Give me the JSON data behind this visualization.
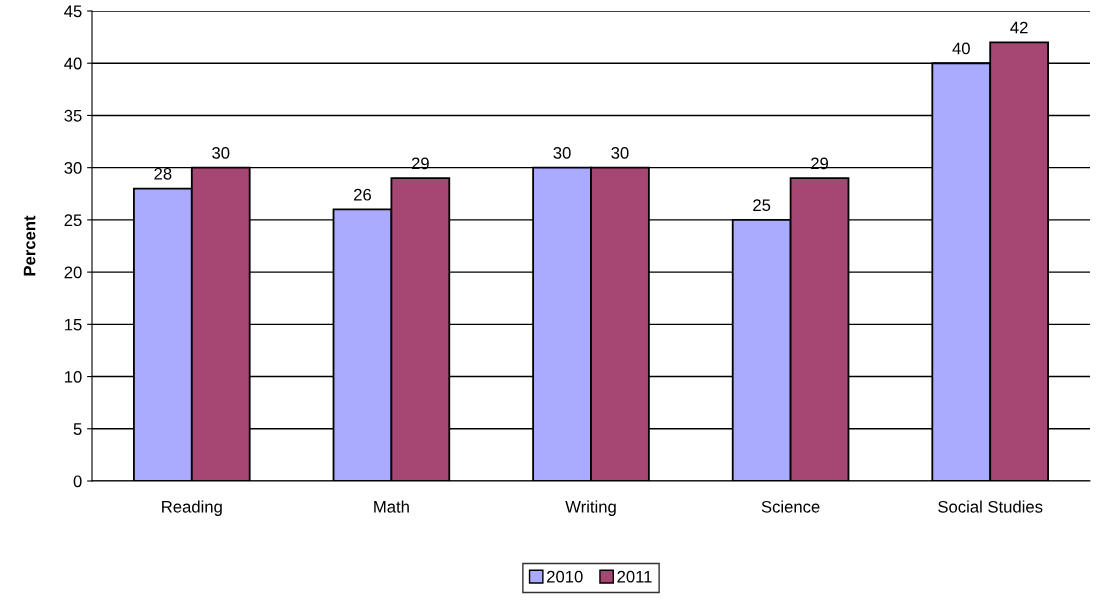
{
  "chart_data": {
    "type": "bar",
    "ylabel": "Percent",
    "categories": [
      "Reading",
      "Math",
      "Writing",
      "Science",
      "Social Studies"
    ],
    "series": [
      {
        "name": "2010",
        "color": "#aaaaff",
        "values": [
          28,
          26,
          30,
          25,
          40
        ]
      },
      {
        "name": "2011",
        "color": "#a64672",
        "values": [
          30,
          29,
          30,
          29,
          42
        ]
      }
    ],
    "ylim": [
      0,
      45
    ],
    "yticks": [
      0,
      5,
      10,
      15,
      20,
      25,
      30,
      35,
      40,
      45
    ],
    "grid": "y",
    "legend": "bottom",
    "data_labels": true
  }
}
